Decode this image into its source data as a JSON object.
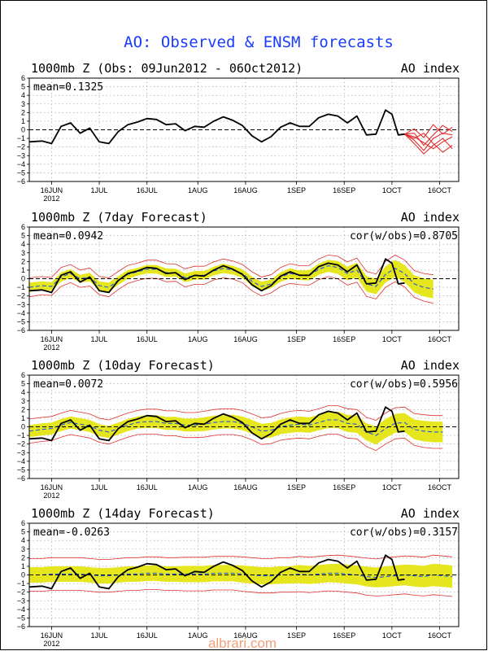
{
  "page": {
    "title": "AO: Observed & ENSM forecasts",
    "watermark": "albrari.com"
  },
  "colors": {
    "observed": "#000000",
    "members": "#e03030",
    "spread": "#e6e61e",
    "ens_mean": "#1e5adc",
    "grid": "#9a9a9a",
    "title": "#1a3cff"
  },
  "chart_data": [
    {
      "type": "line",
      "title": "1000mb Z (Obs: 09Jun2012 - 06Oct2012)",
      "right_label": "AO index",
      "stat_left": "mean=0.1325",
      "stat_right": "",
      "ylim": [
        -6,
        6
      ],
      "x_tick_labels": [
        "16JUN",
        "1JUL",
        "16JUL",
        "1AUG",
        "16AUG",
        "1SEP",
        "16SEP",
        "1OCT",
        "16OCT"
      ],
      "year_label": "2012",
      "x_range_days": [
        0,
        135
      ],
      "observed": {
        "x": [
          0,
          4,
          7,
          10,
          13,
          16,
          19,
          22,
          25,
          28,
          31,
          34,
          37,
          40,
          43,
          46,
          49,
          52,
          55,
          58,
          61,
          64,
          67,
          70,
          73,
          76,
          79,
          82,
          85,
          88,
          91,
          94,
          97,
          100,
          103,
          106,
          109,
          112,
          114,
          116,
          118
        ],
        "y": [
          -1.4,
          -1.3,
          -1.6,
          0.4,
          0.8,
          -0.4,
          0.2,
          -1.4,
          -1.6,
          -0.2,
          0.6,
          0.9,
          1.3,
          1.2,
          0.6,
          0.7,
          -0.1,
          0.4,
          0.3,
          1.0,
          1.5,
          1.1,
          0.5,
          -0.7,
          -1.4,
          -0.8,
          0.3,
          0.8,
          0.4,
          0.4,
          1.4,
          1.8,
          1.6,
          0.8,
          1.6,
          -0.6,
          -0.5,
          2.3,
          1.8,
          -0.6,
          -0.5
        ]
      },
      "members": [
        {
          "x": [
            118,
            121,
            124,
            127,
            130,
            133
          ],
          "y": [
            -0.5,
            -1.2,
            -2.4,
            -1.0,
            -0.4,
            -0.6
          ]
        },
        {
          "x": [
            118,
            121,
            124,
            127,
            130,
            133
          ],
          "y": [
            -0.5,
            -0.8,
            -1.5,
            -2.2,
            -1.4,
            -0.8
          ]
        },
        {
          "x": [
            118,
            121,
            124,
            127,
            130,
            133
          ],
          "y": [
            -0.5,
            0.1,
            -0.9,
            0.6,
            -0.5,
            0.3
          ]
        },
        {
          "x": [
            118,
            121,
            124,
            127,
            130,
            133
          ],
          "y": [
            -0.5,
            -1.0,
            -0.4,
            -1.6,
            -2.6,
            -1.8
          ]
        },
        {
          "x": [
            118,
            121,
            124,
            127,
            130,
            133
          ],
          "y": [
            -0.5,
            -0.4,
            -1.8,
            -0.6,
            0.5,
            -0.2
          ]
        },
        {
          "x": [
            118,
            121,
            124,
            127,
            130,
            133
          ],
          "y": [
            -0.5,
            -1.6,
            -2.8,
            -1.8,
            -1.0,
            -2.2
          ]
        }
      ]
    },
    {
      "type": "line",
      "title": "1000mb Z (7day Forecast)",
      "right_label": "AO index",
      "stat_left": "mean=0.0942",
      "stat_right": "cor(w/obs)=0.8705",
      "ylim": [
        -6,
        6
      ],
      "x_tick_labels": [
        "16JUN",
        "1JUL",
        "16JUL",
        "1AUG",
        "16AUG",
        "1SEP",
        "16SEP",
        "1OCT",
        "16OCT"
      ],
      "year_label": "2012",
      "x_range_days": [
        0,
        135
      ],
      "observed": {
        "x": [
          0,
          4,
          7,
          10,
          13,
          16,
          19,
          22,
          25,
          28,
          31,
          34,
          37,
          40,
          43,
          46,
          49,
          52,
          55,
          58,
          61,
          64,
          67,
          70,
          73,
          76,
          79,
          82,
          85,
          88,
          91,
          94,
          97,
          100,
          103,
          106,
          109,
          112,
          114,
          116,
          118
        ],
        "y": [
          -1.4,
          -1.3,
          -1.6,
          0.4,
          0.8,
          -0.4,
          0.2,
          -1.4,
          -1.6,
          -0.2,
          0.6,
          0.9,
          1.3,
          1.2,
          0.6,
          0.7,
          -0.1,
          0.4,
          0.3,
          1.0,
          1.5,
          1.1,
          0.5,
          -0.7,
          -1.4,
          -0.8,
          0.3,
          0.8,
          0.4,
          0.4,
          1.4,
          1.8,
          1.6,
          0.8,
          1.6,
          -0.6,
          -0.5,
          2.3,
          1.8,
          -0.6,
          -0.5
        ]
      },
      "forecast": {
        "x": [
          0,
          4,
          7,
          10,
          13,
          16,
          19,
          22,
          25,
          28,
          31,
          34,
          37,
          40,
          43,
          46,
          49,
          52,
          55,
          58,
          61,
          64,
          67,
          70,
          73,
          76,
          79,
          82,
          85,
          88,
          91,
          94,
          97,
          100,
          103,
          106,
          109,
          112,
          115,
          118,
          121,
          124,
          127
        ],
        "mean": [
          -1.0,
          -0.8,
          -0.9,
          0.2,
          0.6,
          0.0,
          0.2,
          -0.8,
          -1.0,
          -0.2,
          0.5,
          0.8,
          1.1,
          1.1,
          0.7,
          0.7,
          0.1,
          0.4,
          0.4,
          0.9,
          1.2,
          1.0,
          0.6,
          -0.3,
          -0.9,
          -0.6,
          0.2,
          0.6,
          0.4,
          0.4,
          1.1,
          1.5,
          1.3,
          0.6,
          1.0,
          -0.6,
          -0.9,
          0.5,
          1.2,
          0.6,
          -0.6,
          -1.0,
          -1.2
        ],
        "half_spread": [
          0.55,
          0.5,
          0.5,
          0.55,
          0.5,
          0.45,
          0.5,
          0.5,
          0.55,
          0.5,
          0.5,
          0.45,
          0.5,
          0.5,
          0.5,
          0.45,
          0.5,
          0.5,
          0.5,
          0.5,
          0.55,
          0.5,
          0.5,
          0.55,
          0.55,
          0.5,
          0.55,
          0.6,
          0.55,
          0.6,
          0.65,
          0.7,
          0.75,
          0.8,
          0.85,
          0.9,
          0.9,
          0.95,
          1.0,
          1.0,
          1.0,
          1.05,
          1.1
        ],
        "envelope_pad": 0.55
      }
    },
    {
      "type": "line",
      "title": "1000mb Z (10day Forecast)",
      "right_label": "AO index",
      "stat_left": "mean=0.0072",
      "stat_right": "cor(w/obs)=0.5956",
      "ylim": [
        -6,
        6
      ],
      "x_tick_labels": [
        "16JUN",
        "1JUL",
        "16JUL",
        "1AUG",
        "16AUG",
        "1SEP",
        "16SEP",
        "1OCT",
        "16OCT"
      ],
      "year_label": "2012",
      "x_range_days": [
        0,
        135
      ],
      "observed": {
        "x": [
          0,
          4,
          7,
          10,
          13,
          16,
          19,
          22,
          25,
          28,
          31,
          34,
          37,
          40,
          43,
          46,
          49,
          52,
          55,
          58,
          61,
          64,
          67,
          70,
          73,
          76,
          79,
          82,
          85,
          88,
          91,
          94,
          97,
          100,
          103,
          106,
          109,
          112,
          114,
          116,
          118
        ],
        "y": [
          -1.4,
          -1.3,
          -1.6,
          0.4,
          0.8,
          -0.4,
          0.2,
          -1.4,
          -1.6,
          -0.2,
          0.6,
          0.9,
          1.3,
          1.2,
          0.6,
          0.7,
          -0.1,
          0.4,
          0.3,
          1.0,
          1.5,
          1.1,
          0.5,
          -0.7,
          -1.4,
          -0.8,
          0.3,
          0.8,
          0.4,
          0.4,
          1.4,
          1.8,
          1.6,
          0.8,
          1.6,
          -0.6,
          -0.5,
          2.3,
          1.8,
          -0.6,
          -0.5
        ]
      },
      "forecast": {
        "x": [
          0,
          4,
          7,
          10,
          13,
          16,
          19,
          22,
          25,
          28,
          31,
          34,
          37,
          40,
          43,
          46,
          49,
          52,
          55,
          58,
          61,
          64,
          67,
          70,
          73,
          76,
          79,
          82,
          85,
          88,
          91,
          94,
          97,
          100,
          103,
          106,
          109,
          112,
          115,
          118,
          121,
          124,
          127,
          130
        ],
        "mean": [
          -0.5,
          -0.3,
          -0.2,
          0.2,
          0.5,
          0.3,
          0.1,
          -0.4,
          -0.6,
          -0.2,
          0.2,
          0.5,
          0.6,
          0.6,
          0.4,
          0.4,
          0.2,
          0.2,
          0.3,
          0.5,
          0.6,
          0.6,
          0.4,
          0.0,
          -0.5,
          -0.4,
          0.0,
          0.2,
          0.3,
          0.2,
          0.5,
          0.8,
          0.8,
          0.4,
          0.3,
          -0.6,
          -1.0,
          -0.2,
          0.4,
          0.5,
          -0.3,
          -0.5,
          -0.6,
          -0.6
        ],
        "half_spread": [
          0.7,
          0.7,
          0.7,
          0.7,
          0.7,
          0.7,
          0.7,
          0.7,
          0.7,
          0.7,
          0.7,
          0.7,
          0.75,
          0.75,
          0.75,
          0.75,
          0.75,
          0.75,
          0.8,
          0.8,
          0.8,
          0.8,
          0.8,
          0.8,
          0.85,
          0.85,
          0.85,
          0.9,
          0.9,
          0.9,
          0.9,
          0.95,
          0.95,
          1.0,
          1.0,
          1.0,
          1.05,
          1.1,
          1.1,
          1.1,
          1.15,
          1.2,
          1.2,
          1.2
        ],
        "envelope_pad": 0.7
      }
    },
    {
      "type": "line",
      "title": "1000mb Z (14day Forecast)",
      "right_label": "AO index",
      "stat_left": "mean=-0.0263",
      "stat_right": "cor(w/obs)=0.3157",
      "ylim": [
        -6,
        6
      ],
      "x_tick_labels": [
        "16JUN",
        "1JUL",
        "16JUL",
        "1AUG",
        "16AUG",
        "1SEP",
        "16SEP",
        "1OCT",
        "16OCT"
      ],
      "year_label": "2012",
      "x_range_days": [
        0,
        135
      ],
      "observed": {
        "x": [
          0,
          4,
          7,
          10,
          13,
          16,
          19,
          22,
          25,
          28,
          31,
          34,
          37,
          40,
          43,
          46,
          49,
          52,
          55,
          58,
          61,
          64,
          67,
          70,
          73,
          76,
          79,
          82,
          85,
          88,
          91,
          94,
          97,
          100,
          103,
          106,
          109,
          112,
          114,
          116,
          118
        ],
        "y": [
          -1.4,
          -1.3,
          -1.6,
          0.4,
          0.8,
          -0.4,
          0.2,
          -1.4,
          -1.6,
          -0.2,
          0.6,
          0.9,
          1.3,
          1.2,
          0.6,
          0.7,
          -0.1,
          0.4,
          0.3,
          1.0,
          1.5,
          1.1,
          0.5,
          -0.7,
          -1.4,
          -0.8,
          0.3,
          0.8,
          0.4,
          0.4,
          1.4,
          1.8,
          1.6,
          0.8,
          1.6,
          -0.6,
          -0.5,
          2.3,
          1.8,
          -0.6,
          -0.5
        ]
      },
      "forecast": {
        "x": [
          0,
          4,
          7,
          10,
          13,
          16,
          19,
          22,
          25,
          28,
          31,
          34,
          37,
          40,
          43,
          46,
          49,
          52,
          55,
          58,
          61,
          64,
          67,
          70,
          73,
          76,
          79,
          82,
          85,
          88,
          91,
          94,
          97,
          100,
          103,
          106,
          109,
          112,
          115,
          118,
          121,
          124,
          127,
          130,
          133
        ],
        "mean": [
          0.0,
          0.0,
          0.1,
          0.1,
          0.1,
          0.1,
          0.0,
          -0.1,
          -0.1,
          0.0,
          0.1,
          0.1,
          0.2,
          0.2,
          0.1,
          0.1,
          0.1,
          0.1,
          0.1,
          0.2,
          0.2,
          0.2,
          0.1,
          0.0,
          -0.1,
          -0.1,
          0.0,
          0.0,
          0.1,
          0.0,
          0.1,
          0.2,
          0.2,
          0.1,
          0.0,
          -0.2,
          -0.3,
          -0.2,
          -0.1,
          0.0,
          -0.1,
          -0.2,
          0.0,
          -0.1,
          -0.2
        ],
        "half_spread": [
          0.9,
          0.9,
          0.9,
          0.9,
          0.9,
          0.9,
          0.9,
          0.9,
          0.9,
          0.9,
          0.9,
          0.9,
          0.9,
          0.9,
          0.9,
          0.9,
          0.95,
          0.95,
          0.95,
          0.95,
          0.95,
          0.95,
          1.0,
          1.0,
          1.0,
          1.0,
          1.0,
          1.0,
          1.05,
          1.05,
          1.05,
          1.05,
          1.1,
          1.1,
          1.1,
          1.15,
          1.15,
          1.2,
          1.2,
          1.2,
          1.25,
          1.25,
          1.3,
          1.3,
          1.3
        ],
        "envelope_pad": 1.0
      }
    }
  ]
}
